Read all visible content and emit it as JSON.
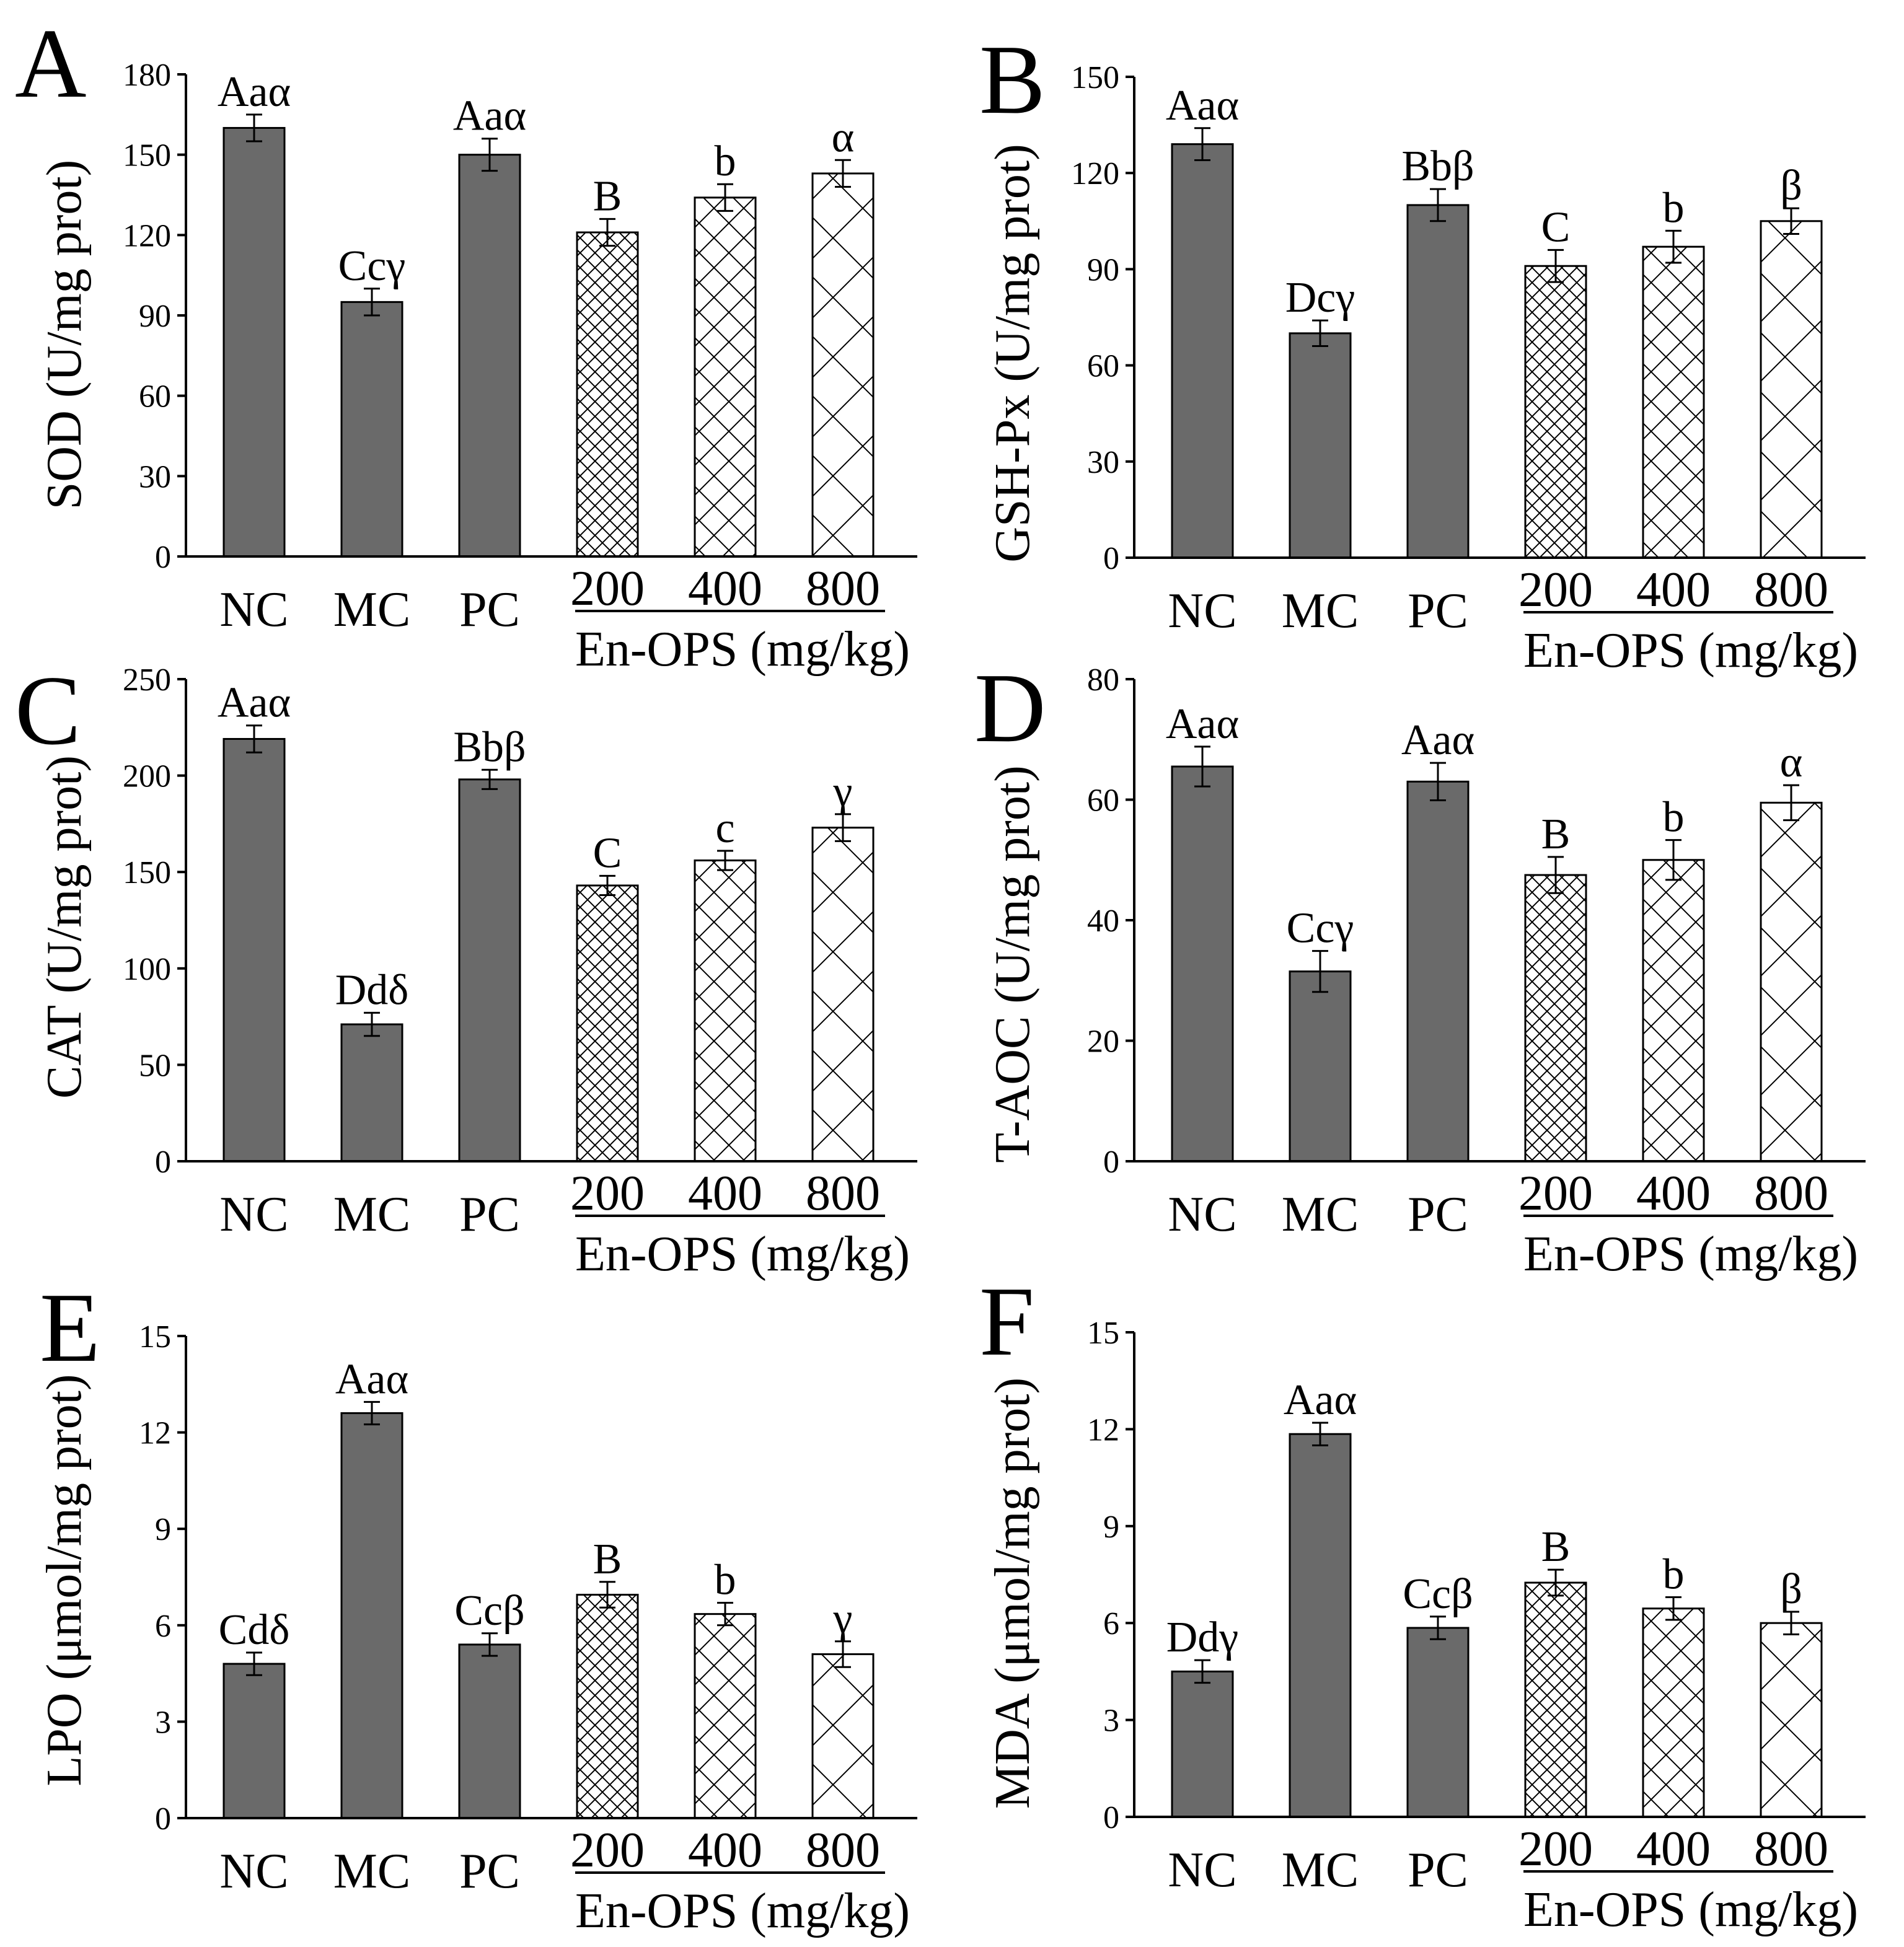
{
  "colors": {
    "bar_fill": "#6a6a6a",
    "ink": "#000000",
    "background": "#ffffff"
  },
  "chart_data": [
    {
      "panel": "A",
      "type": "bar",
      "categories": [
        "NC",
        "MC",
        "PC",
        "200",
        "400",
        "800"
      ],
      "group": {
        "label": "En-OPS (mg/kg)",
        "from": 3,
        "to": 5
      },
      "values": [
        160,
        95,
        150,
        121,
        134,
        143
      ],
      "errors": [
        5,
        5,
        6,
        5,
        5,
        5
      ],
      "significance": [
        "Aaα",
        "Ccγ",
        "Aaα",
        "B",
        "b",
        "α"
      ],
      "ylabel": "SOD (U/mg prot)",
      "ylim": [
        0,
        180
      ],
      "yticks": [
        0,
        30,
        60,
        90,
        120,
        150,
        180
      ]
    },
    {
      "panel": "B",
      "type": "bar",
      "categories": [
        "NC",
        "MC",
        "PC",
        "200",
        "400",
        "800"
      ],
      "group": {
        "label": "En-OPS (mg/kg)",
        "from": 3,
        "to": 5
      },
      "values": [
        129,
        70,
        110,
        91,
        97,
        105
      ],
      "errors": [
        5,
        4,
        5,
        5,
        5,
        4
      ],
      "significance": [
        "Aaα",
        "Dcγ",
        "Bbβ",
        "C",
        "b",
        "β"
      ],
      "ylabel": "GSH-Px (U/mg prot)",
      "ylim": [
        0,
        150
      ],
      "yticks": [
        0,
        30,
        60,
        90,
        120,
        150
      ]
    },
    {
      "panel": "C",
      "type": "bar",
      "categories": [
        "NC",
        "MC",
        "PC",
        "200",
        "400",
        "800"
      ],
      "group": {
        "label": "En-OPS (mg/kg)",
        "from": 3,
        "to": 5
      },
      "values": [
        219,
        71,
        198,
        143,
        156,
        173
      ],
      "errors": [
        7,
        6,
        5,
        5,
        5,
        7
      ],
      "significance": [
        "Aaα",
        "Ddδ",
        "Bbβ",
        "C",
        "c",
        "γ"
      ],
      "ylabel": "CAT (U/mg prot)",
      "ylim": [
        0,
        250
      ],
      "yticks": [
        0,
        50,
        100,
        150,
        200,
        250
      ]
    },
    {
      "panel": "D",
      "type": "bar",
      "categories": [
        "NC",
        "MC",
        "PC",
        "200",
        "400",
        "800"
      ],
      "group": {
        "label": "En-OPS (mg/kg)",
        "from": 3,
        "to": 5
      },
      "values": [
        65.5,
        31.5,
        63,
        47.5,
        50,
        59.5
      ],
      "errors": [
        3.3,
        3.4,
        3.1,
        3.0,
        3.3,
        2.9
      ],
      "significance": [
        "Aaα",
        "Ccγ",
        "Aaα",
        "B",
        "b",
        "α"
      ],
      "ylabel": "T-AOC (U/mg prot)",
      "ylim": [
        0,
        80
      ],
      "yticks": [
        0,
        20,
        40,
        60,
        80
      ]
    },
    {
      "panel": "E",
      "type": "bar",
      "categories": [
        "NC",
        "MC",
        "PC",
        "200",
        "400",
        "800"
      ],
      "group": {
        "label": "En-OPS (mg/kg)",
        "from": 3,
        "to": 5
      },
      "values": [
        4.8,
        12.6,
        5.4,
        6.95,
        6.35,
        5.1
      ],
      "errors": [
        0.35,
        0.35,
        0.35,
        0.4,
        0.35,
        0.4
      ],
      "significance": [
        "Cdδ",
        "Aaα",
        "Ccβ",
        "B",
        "b",
        "γ"
      ],
      "ylabel": "LPO (μmol/mg prot)",
      "ylim": [
        0,
        15
      ],
      "yticks": [
        0,
        3,
        6,
        9,
        12,
        15
      ]
    },
    {
      "panel": "F",
      "type": "bar",
      "categories": [
        "NC",
        "MC",
        "PC",
        "200",
        "400",
        "800"
      ],
      "group": {
        "label": "En-OPS (mg/kg)",
        "from": 3,
        "to": 5
      },
      "values": [
        4.5,
        11.85,
        5.85,
        7.25,
        6.45,
        6.0
      ],
      "errors": [
        0.35,
        0.35,
        0.35,
        0.4,
        0.35,
        0.35
      ],
      "significance": [
        "Ddγ",
        "Aaα",
        "Ccβ",
        "B",
        "b",
        "β"
      ],
      "ylabel": "MDA (μmol/mg prot)",
      "ylim": [
        0,
        15
      ],
      "yticks": [
        0,
        3,
        6,
        9,
        12,
        15
      ]
    }
  ]
}
